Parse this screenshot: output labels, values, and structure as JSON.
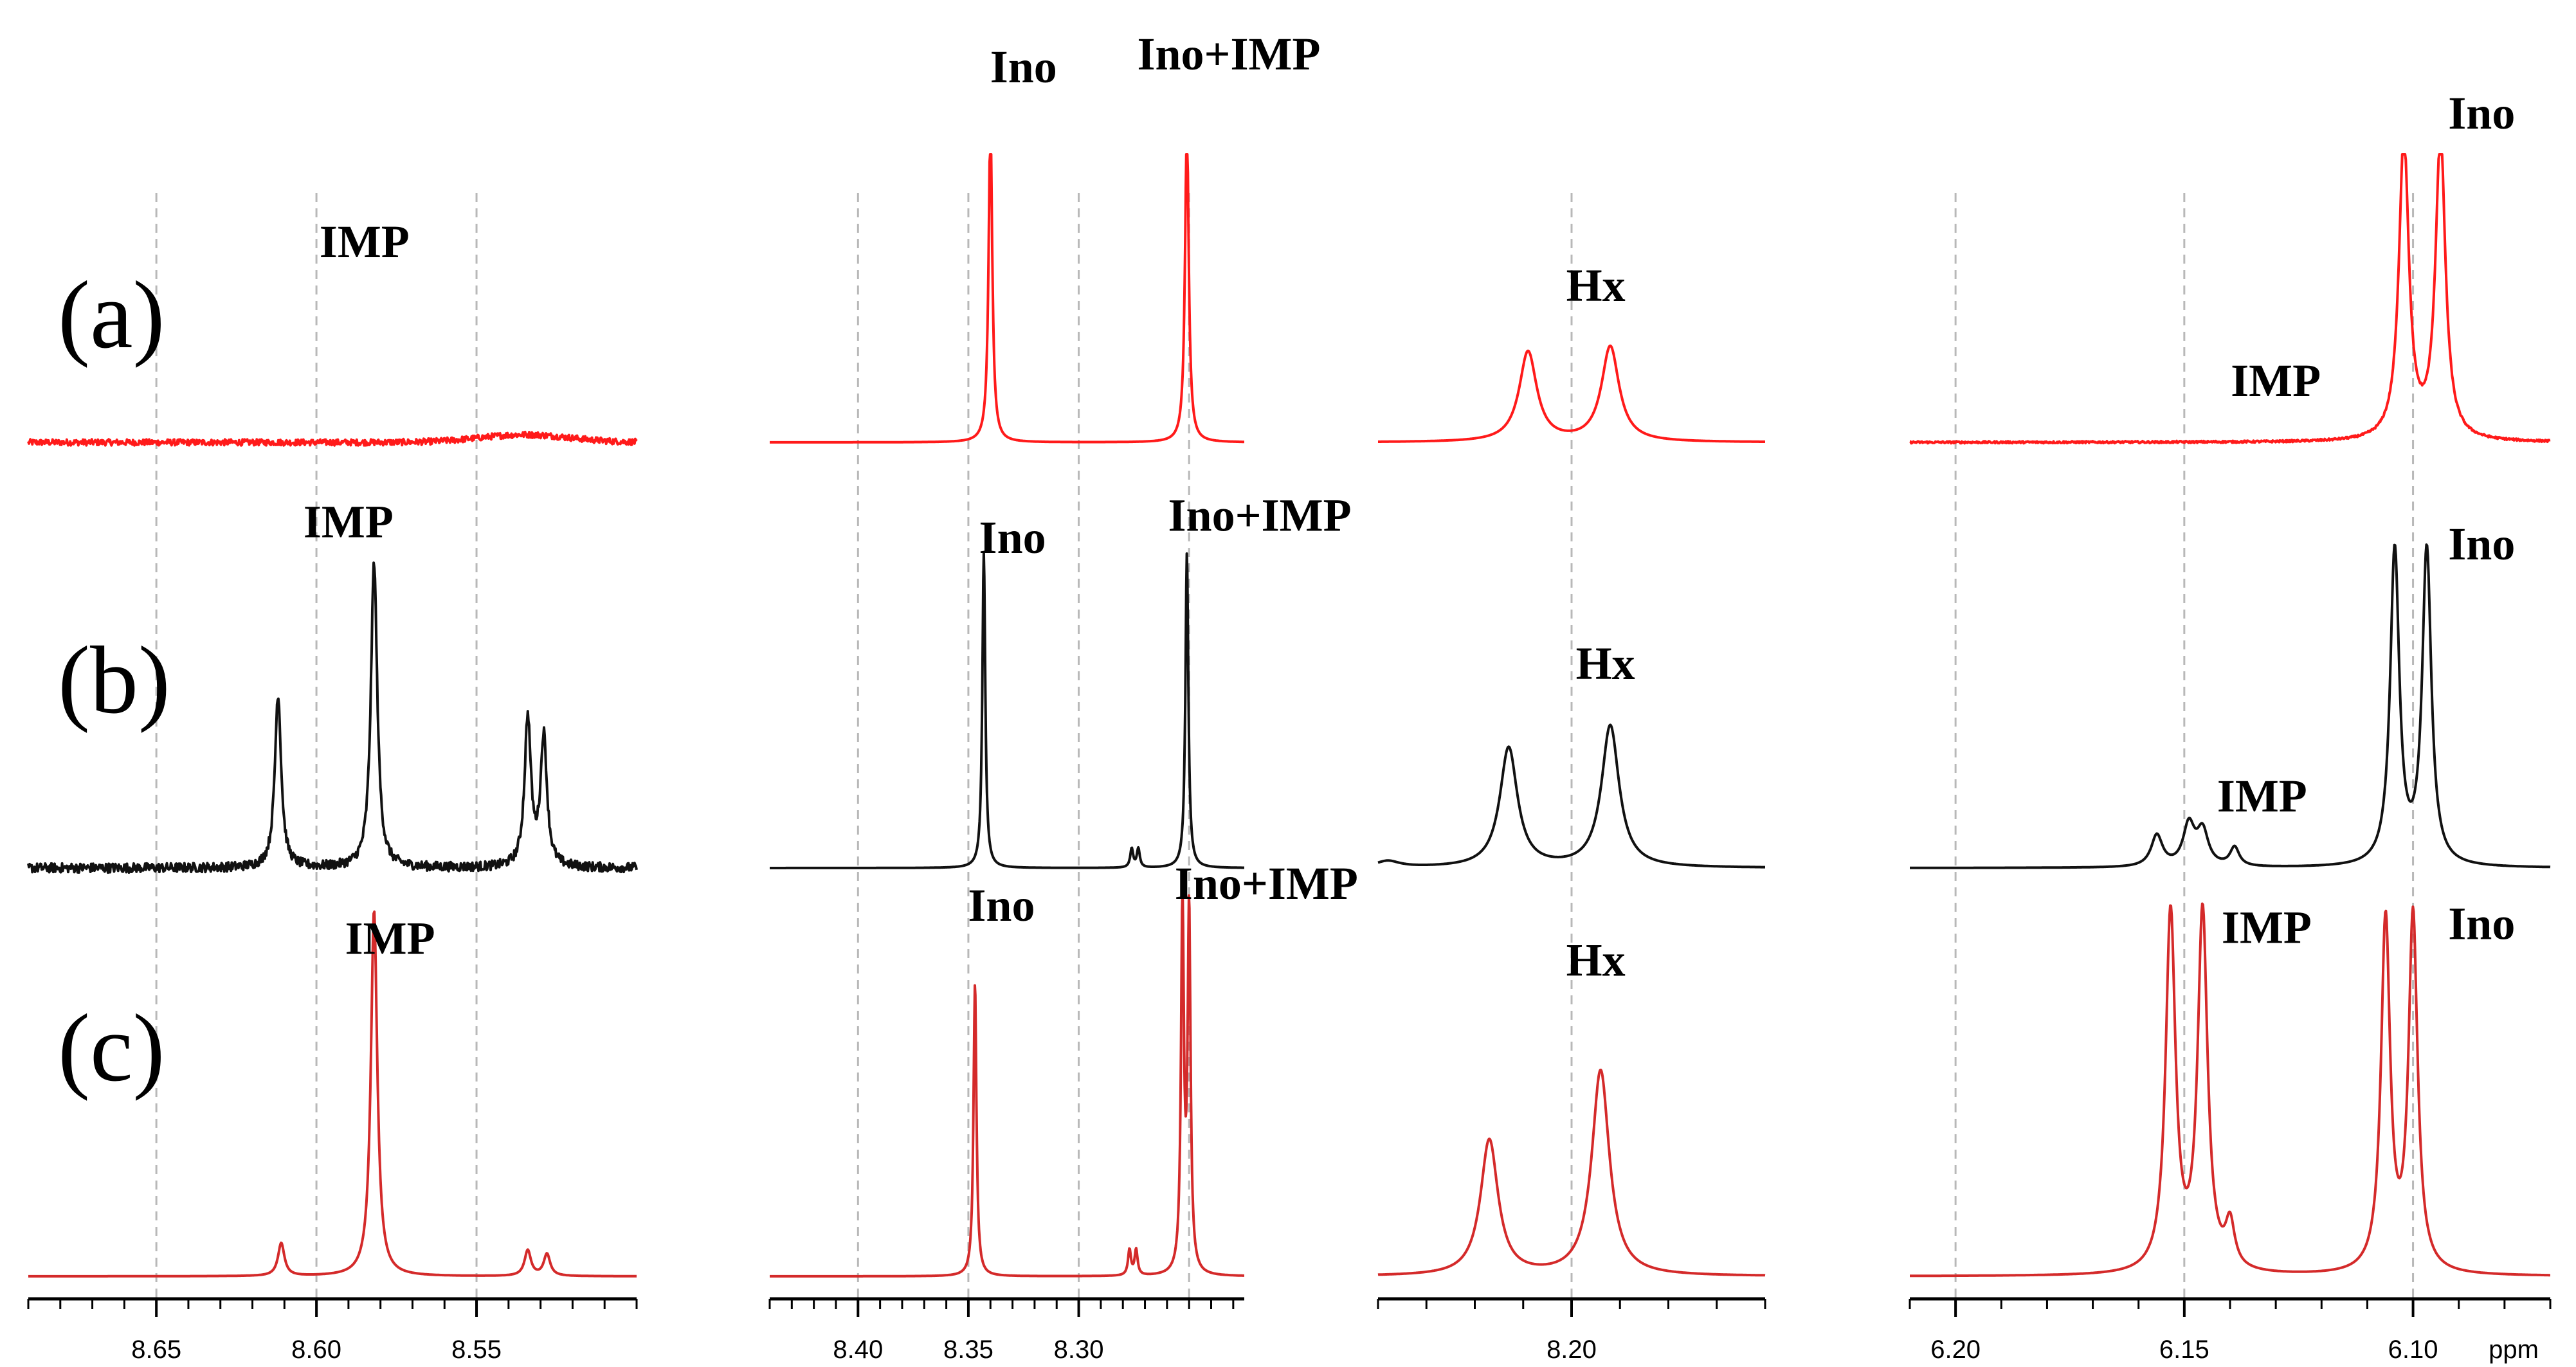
{
  "chart_data": {
    "type": "line",
    "description_free": true,
    "rows": [
      "(a)",
      "(b)",
      "(c)"
    ],
    "series_colors": {
      "(a)": "#ff1a1a",
      "(b)": "#111111",
      "(c)": "#d42a2a"
    },
    "xunit": "ppm",
    "panels": [
      {
        "id": "p1",
        "xlim": [
          8.69,
          8.5
        ],
        "grid": [
          8.65,
          8.6,
          8.55
        ],
        "ticks": [
          {
            "v": 8.65,
            "t": "8.65"
          },
          {
            "v": 8.6,
            "t": "8.60"
          },
          {
            "v": 8.55,
            "t": "8.55"
          }
        ],
        "rows": [
          {
            "peaks": [],
            "noise": 0.012,
            "bumps": [
              [
                8.535,
                0.03,
                0.02
              ]
            ]
          },
          {
            "peaks": [
              [
                8.612,
                0.55,
                0.0012
              ],
              [
                8.582,
                0.97,
                0.0012
              ],
              [
                8.534,
                0.47,
                0.0012
              ],
              [
                8.529,
                0.41,
                0.0012
              ]
            ],
            "noise": 0.015
          },
          {
            "peaks": [
              [
                8.611,
                0.09,
                0.0012
              ],
              [
                8.582,
                1.0,
                0.0012
              ],
              [
                8.534,
                0.07,
                0.0012
              ],
              [
                8.528,
                0.06,
                0.0012
              ]
            ],
            "noise": 0.0
          }
        ],
        "labels": [
          {
            "row": 0,
            "x": 8.585,
            "y": 0.72,
            "text": "IMP"
          },
          {
            "row": 1,
            "x": 8.59,
            "y": 1.05,
            "text": "IMP"
          },
          {
            "row": 2,
            "x": 8.577,
            "y": 0.88,
            "text": "IMP"
          }
        ]
      },
      {
        "id": "p2",
        "xlim": [
          8.44,
          8.225
        ],
        "grid": [
          8.4,
          8.35,
          8.3,
          8.25
        ],
        "ticks": [
          {
            "v": 8.4,
            "t": "8.40"
          },
          {
            "v": 8.35,
            "t": "8.35"
          },
          {
            "v": 8.3,
            "t": "8.30"
          }
        ],
        "rows": [
          {
            "peaks": [
              [
                8.34,
                1.25,
                0.001
              ],
              [
                8.251,
                1.25,
                0.001
              ]
            ],
            "noise": 0.0
          },
          {
            "peaks": [
              [
                8.343,
                1.0,
                0.0008
              ],
              [
                8.276,
                0.06,
                0.0008
              ],
              [
                8.273,
                0.06,
                0.0008
              ],
              [
                8.251,
                1.0,
                0.0008
              ]
            ],
            "noise": 0.0
          },
          {
            "peaks": [
              [
                8.347,
                0.8,
                0.0008
              ],
              [
                8.277,
                0.07,
                0.0008
              ],
              [
                8.274,
                0.07,
                0.0008
              ],
              [
                8.253,
                0.99,
                0.0008
              ],
              [
                8.25,
                0.98,
                0.0008
              ]
            ],
            "noise": 0.0
          }
        ],
        "labels": [
          {
            "row": 0,
            "x": 8.325,
            "y": 1.4,
            "text": "Ino"
          },
          {
            "row": 0,
            "x": 8.232,
            "y": 1.45,
            "text": "Ino+IMP"
          },
          {
            "row": 1,
            "x": 8.33,
            "y": 1.0,
            "text": "Ino"
          },
          {
            "row": 1,
            "x": 8.218,
            "y": 1.07,
            "text": "Ino+IMP"
          },
          {
            "row": 2,
            "x": 8.335,
            "y": 0.97,
            "text": "Ino"
          },
          {
            "row": 2,
            "x": 8.215,
            "y": 1.03,
            "text": "Ino+IMP"
          }
        ]
      },
      {
        "id": "p3",
        "xlim": [
          8.24,
          8.16
        ],
        "grid": [
          8.2
        ],
        "ticks": [
          {
            "v": 8.2,
            "t": "8.20"
          }
        ],
        "rows": [
          {
            "peaks": [
              [
                8.209,
                0.35,
                0.0022
              ],
              [
                8.192,
                0.37,
                0.0022
              ]
            ],
            "noise": 0.0
          },
          {
            "peaks": [
              [
                8.213,
                0.38,
                0.0022
              ],
              [
                8.192,
                0.45,
                0.0022
              ],
              [
                8.238,
                0.02,
                0.003
              ]
            ],
            "noise": 0.0
          },
          {
            "peaks": [
              [
                8.217,
                0.37,
                0.0022
              ],
              [
                8.194,
                0.56,
                0.0022
              ]
            ],
            "noise": 0.0
          }
        ],
        "labels": [
          {
            "row": 0,
            "x": 8.195,
            "y": 0.55,
            "text": "Hx"
          },
          {
            "row": 1,
            "x": 8.193,
            "y": 0.6,
            "text": "Hx"
          },
          {
            "row": 2,
            "x": 8.195,
            "y": 0.82,
            "text": "Hx"
          }
        ]
      },
      {
        "id": "p4",
        "xlim": [
          6.21,
          6.07
        ],
        "grid": [
          6.2,
          6.15,
          6.1
        ],
        "ticks": [
          {
            "v": 6.2,
            "t": "6.20"
          },
          {
            "v": 6.15,
            "t": "6.15"
          },
          {
            "v": 6.1,
            "t": "6.10"
          },
          {
            "v": 6.078,
            "t": "ppm"
          }
        ],
        "rows": [
          {
            "peaks": [
              [
                6.102,
                1.18,
                0.0013
              ],
              [
                6.094,
                1.18,
                0.0013
              ]
            ],
            "noise": 0.004
          },
          {
            "peaks": [
              [
                6.156,
                0.1,
                0.0015
              ],
              [
                6.149,
                0.13,
                0.0015
              ],
              [
                6.146,
                0.11,
                0.0015
              ],
              [
                6.139,
                0.06,
                0.0012
              ],
              [
                6.104,
                1.0,
                0.0012
              ],
              [
                6.097,
                1.0,
                0.0012
              ]
            ],
            "noise": 0.0
          },
          {
            "peaks": [
              [
                6.153,
                0.98,
                0.0013
              ],
              [
                6.146,
                0.98,
                0.0013
              ],
              [
                6.14,
                0.12,
                0.0012
              ],
              [
                6.106,
                0.96,
                0.0012
              ],
              [
                6.1,
                0.97,
                0.0012
              ]
            ],
            "noise": 0.0
          }
        ],
        "labels": [
          {
            "row": 0,
            "x": 6.085,
            "y": 1.22,
            "text": "Ino"
          },
          {
            "row": 0,
            "x": 6.13,
            "y": 0.18,
            "text": "IMP"
          },
          {
            "row": 1,
            "x": 6.085,
            "y": 0.98,
            "text": "Ino"
          },
          {
            "row": 1,
            "x": 6.133,
            "y": 0.18,
            "text": "IMP"
          },
          {
            "row": 2,
            "x": 6.085,
            "y": 0.92,
            "text": "Ino"
          },
          {
            "row": 2,
            "x": 6.132,
            "y": 0.91,
            "text": "IMP"
          }
        ]
      }
    ]
  }
}
